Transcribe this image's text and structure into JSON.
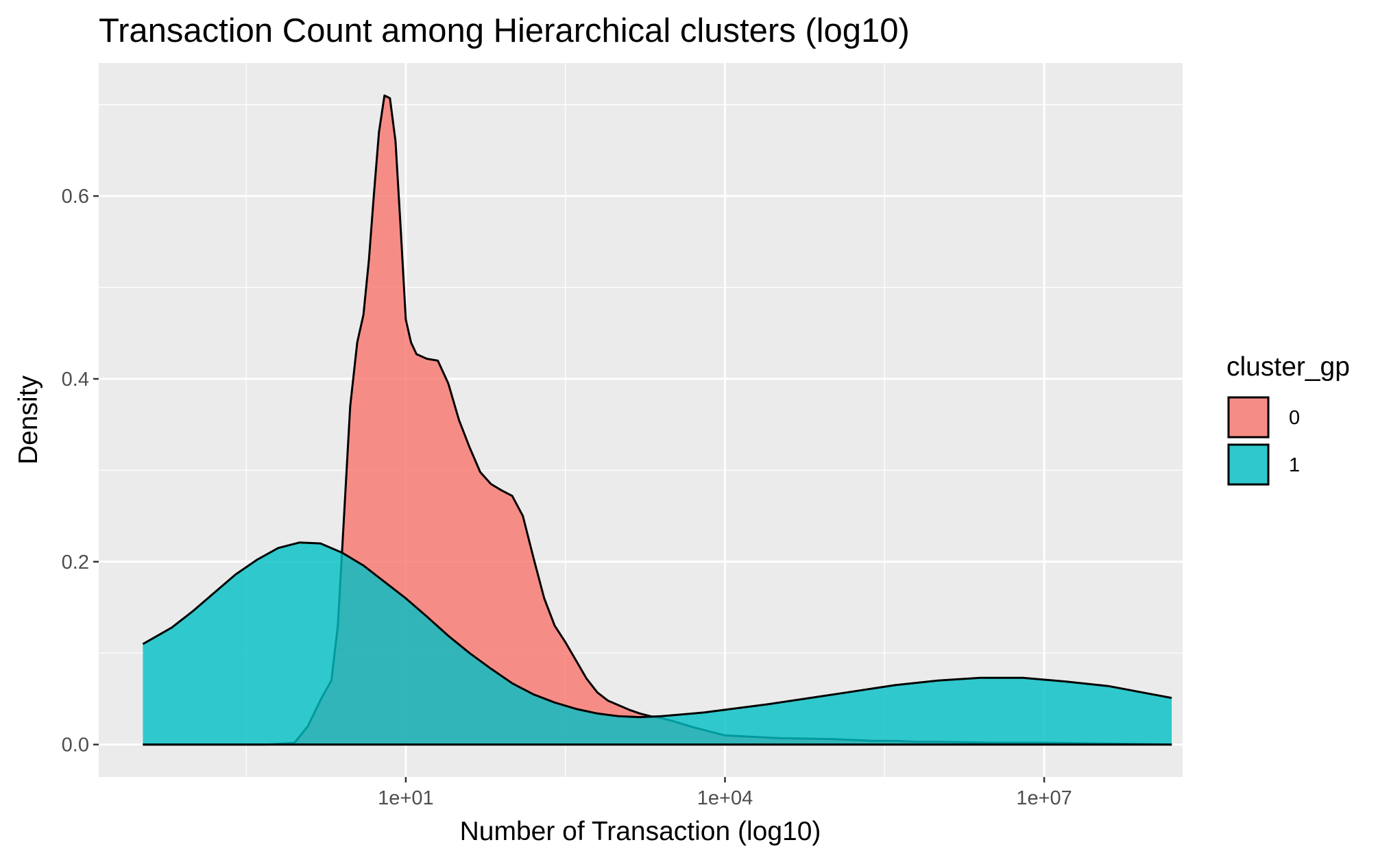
{
  "chart_data": {
    "type": "area",
    "subtype": "density",
    "title": "Transaction Count among Hierarchical clusters (log10)",
    "xlabel": "Number of Transaction (log10)",
    "ylabel": "Density",
    "x_scale": "log10",
    "xlim": [
      0.013,
      200000000
    ],
    "ylim": [
      -0.0355,
      0.7455
    ],
    "x_ticks": [
      10,
      10000,
      10000000
    ],
    "x_tick_labels": [
      "1e+01",
      "1e+04",
      "1e+07"
    ],
    "x_minor_ticks": [
      0.316,
      316,
      316000
    ],
    "y_ticks": [
      0.0,
      0.2,
      0.4,
      0.6
    ],
    "y_tick_labels": [
      "0.0",
      "0.2",
      "0.4",
      "0.6"
    ],
    "y_minor_ticks": [
      0.1,
      0.3,
      0.5,
      0.7
    ],
    "grid": true,
    "legend": {
      "title": "cluster_gp",
      "position": "right",
      "entries": [
        "0",
        "1"
      ]
    },
    "series": [
      {
        "name": "0",
        "color": "#F8766D",
        "alpha": 0.8,
        "x": [
          0.0338,
          0.5,
          0.9,
          1.2,
          1.6,
          2.0,
          2.3,
          2.6,
          3.0,
          3.5,
          4.0,
          4.5,
          5.0,
          5.6,
          6.3,
          7.1,
          8.0,
          9.0,
          10.0,
          11.2,
          12.6,
          15.8,
          20.0,
          25.1,
          31.6,
          39.8,
          50.1,
          63.1,
          79.4,
          100,
          126,
          158,
          200,
          251,
          316,
          398,
          501,
          631,
          794,
          1000,
          1259,
          1585,
          1995,
          2512,
          3162,
          5012,
          10000,
          31623,
          100000,
          251189,
          398107,
          630957,
          1000000,
          3162278,
          10000000,
          158000000
        ],
        "values": [
          0.0,
          0.0,
          0.002,
          0.02,
          0.05,
          0.07,
          0.13,
          0.24,
          0.37,
          0.44,
          0.47,
          0.53,
          0.6,
          0.67,
          0.71,
          0.707,
          0.66,
          0.56,
          0.465,
          0.44,
          0.427,
          0.422,
          0.42,
          0.395,
          0.355,
          0.325,
          0.298,
          0.285,
          0.278,
          0.272,
          0.25,
          0.205,
          0.16,
          0.13,
          0.112,
          0.092,
          0.072,
          0.057,
          0.048,
          0.043,
          0.038,
          0.034,
          0.031,
          0.029,
          0.026,
          0.019,
          0.01,
          0.007,
          0.006,
          0.004,
          0.004,
          0.003,
          0.003,
          0.002,
          0.002,
          0.0
        ]
      },
      {
        "name": "1",
        "color": "#00BFC4",
        "alpha": 0.8,
        "x": [
          0.0338,
          0.0631,
          0.1,
          0.158,
          0.251,
          0.398,
          0.631,
          1.0,
          1.58,
          2.51,
          3.98,
          6.31,
          10.0,
          15.8,
          25.1,
          39.8,
          63.1,
          100,
          158,
          251,
          398,
          631,
          1000,
          1585,
          2512,
          3981,
          6310,
          10000,
          25119,
          63096,
          158489,
          398107,
          1000000,
          2511886,
          6309573,
          15848932,
          39810717,
          158000000
        ],
        "values": [
          0.11,
          0.128,
          0.146,
          0.166,
          0.186,
          0.202,
          0.215,
          0.221,
          0.22,
          0.21,
          0.196,
          0.178,
          0.16,
          0.14,
          0.119,
          0.1,
          0.083,
          0.067,
          0.055,
          0.046,
          0.039,
          0.034,
          0.031,
          0.03,
          0.031,
          0.033,
          0.035,
          0.038,
          0.044,
          0.051,
          0.058,
          0.065,
          0.07,
          0.073,
          0.073,
          0.069,
          0.064,
          0.051
        ]
      }
    ]
  }
}
